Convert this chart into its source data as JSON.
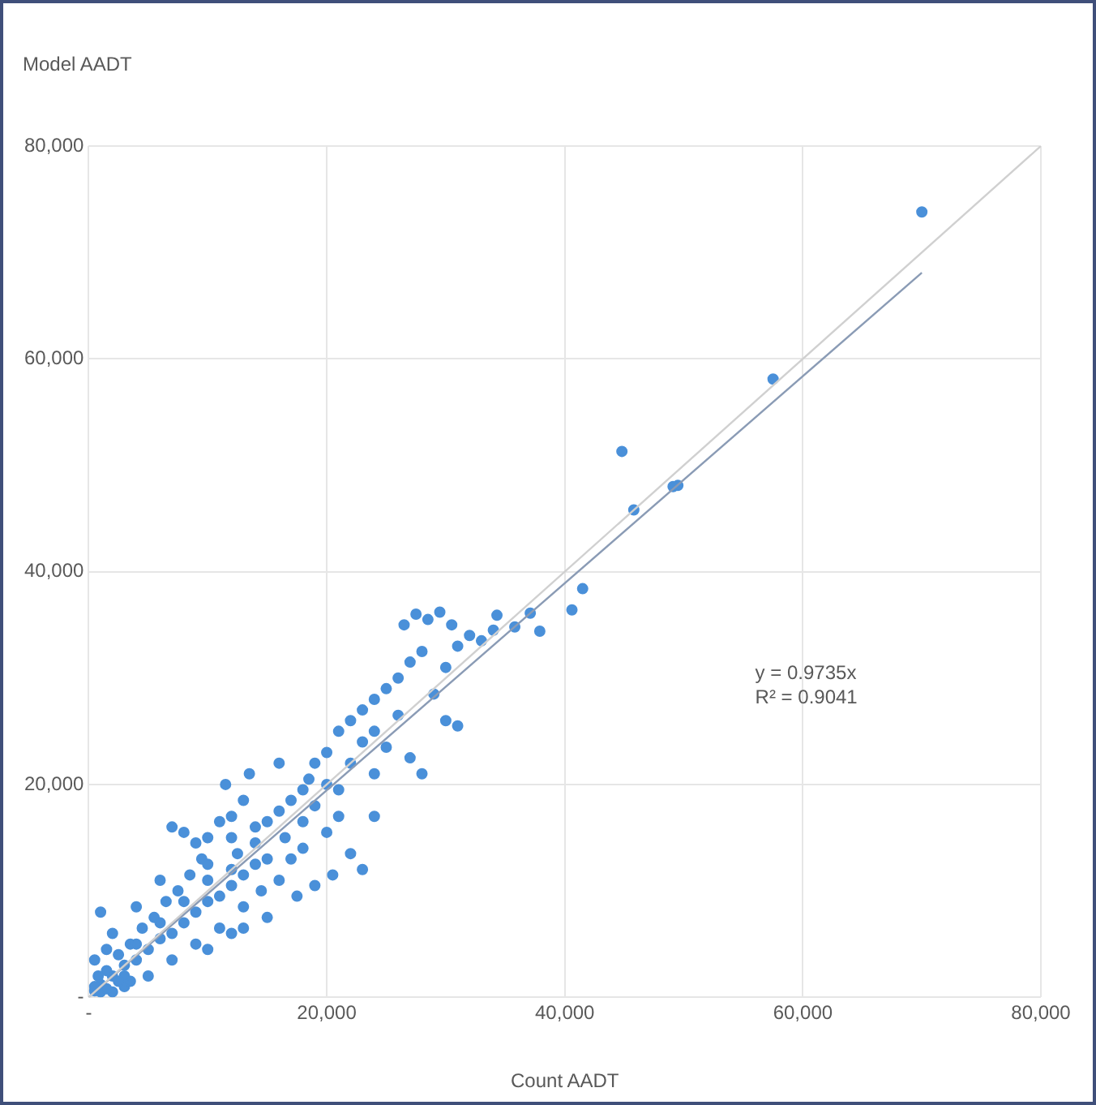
{
  "chart_data": {
    "type": "scatter",
    "xlabel": "Count AADT",
    "ylabel": "Model AADT",
    "xlim": [
      0,
      80000
    ],
    "ylim": [
      0,
      80000
    ],
    "xticks": [
      {
        "value": 0,
        "label": "-"
      },
      {
        "value": 20000,
        "label": "20,000"
      },
      {
        "value": 40000,
        "label": "40,000"
      },
      {
        "value": 60000,
        "label": "60,000"
      },
      {
        "value": 80000,
        "label": "80,000"
      }
    ],
    "yticks": [
      {
        "value": 0,
        "label": "-"
      },
      {
        "value": 20000,
        "label": "20,000"
      },
      {
        "value": 40000,
        "label": "40,000"
      },
      {
        "value": 60000,
        "label": "60,000"
      },
      {
        "value": 80000,
        "label": "80,000"
      }
    ],
    "grid": true,
    "legend": false,
    "marker": "circle",
    "annotations": [
      "y = 0.9735x",
      "R² = 0.9041"
    ],
    "series": [
      {
        "type": "line",
        "color": "#d0d0d0",
        "x": [
          0,
          80000
        ],
        "values": [
          0,
          80000
        ],
        "marker": "none"
      },
      {
        "type": "line",
        "color": "#8a9bb5",
        "x": [
          0,
          70000
        ],
        "values": [
          0,
          68100
        ],
        "marker": "none"
      },
      {
        "type": "scatter",
        "color": "#4a90d9",
        "x": [
          26500,
          27500,
          28500,
          29500,
          30500,
          31000,
          32000,
          33000,
          34000,
          35800,
          34300,
          37100,
          37900,
          40600,
          41500,
          30000,
          28000,
          27000,
          26000,
          25000,
          29000,
          30000,
          31000,
          24000,
          23000,
          22000,
          21000,
          23000,
          25000,
          27000,
          28000,
          24000,
          20000,
          19000,
          18500,
          18000,
          17000,
          16000,
          15000,
          14000,
          16500,
          18000,
          20000,
          21000,
          22000,
          23000,
          20500,
          19000,
          17500,
          15000,
          14000,
          13000,
          12000,
          11000,
          10000,
          9000,
          8000,
          7000,
          6000,
          5000,
          4000,
          3000,
          2000,
          1000,
          500,
          1500,
          2500,
          3500,
          4500,
          5500,
          6500,
          7500,
          8500,
          9500,
          7000,
          8000,
          9000,
          10000,
          11000,
          12000,
          13000,
          11500,
          13500,
          12500,
          14500,
          13000,
          11000,
          9000,
          7000,
          5000,
          3000,
          2000,
          6000,
          4000,
          1000,
          2000,
          1500,
          500,
          800,
          3500,
          12000,
          15000,
          10000,
          16000,
          17000,
          18000,
          19000,
          14000,
          12000,
          10000,
          8000,
          6000,
          4000,
          3000,
          2500,
          16000,
          12000,
          10000,
          20000,
          22000,
          24000,
          26000,
          21000,
          24000,
          13000,
          1000,
          500,
          1500,
          44800,
          45800,
          49100,
          49500,
          57500,
          70000
        ],
        "values": [
          35000,
          36000,
          35500,
          36200,
          35000,
          33000,
          34000,
          33500,
          34500,
          34800,
          35900,
          36100,
          34400,
          36400,
          38400,
          31000,
          32500,
          31500,
          30000,
          29000,
          28500,
          26000,
          25500,
          28000,
          27000,
          26000,
          25000,
          24000,
          23500,
          22500,
          21000,
          21000,
          23000,
          22000,
          20500,
          19500,
          18500,
          17500,
          16500,
          16000,
          15000,
          14000,
          15500,
          17000,
          13500,
          12000,
          11500,
          10500,
          9500,
          13000,
          12500,
          11500,
          10500,
          9500,
          9000,
          8000,
          7000,
          6000,
          5500,
          4500,
          3500,
          3000,
          2000,
          1200,
          600,
          2500,
          4000,
          5000,
          6500,
          7500,
          9000,
          10000,
          11500,
          13000,
          16000,
          15500,
          14500,
          15000,
          16500,
          17000,
          18500,
          20000,
          21000,
          13500,
          10000,
          8500,
          6500,
          5000,
          3500,
          2000,
          1000,
          500,
          11000,
          8500,
          8000,
          6000,
          4500,
          3500,
          2000,
          1500,
          6000,
          7500,
          4500,
          11000,
          13000,
          16500,
          18000,
          14500,
          12000,
          11000,
          9000,
          7000,
          5000,
          2000,
          1500,
          22000,
          15000,
          12500,
          20000,
          22000,
          25000,
          26500,
          19500,
          17000,
          6500,
          500,
          1000,
          800,
          51300,
          45800,
          48000,
          48100,
          58100,
          73800
        ]
      }
    ]
  }
}
